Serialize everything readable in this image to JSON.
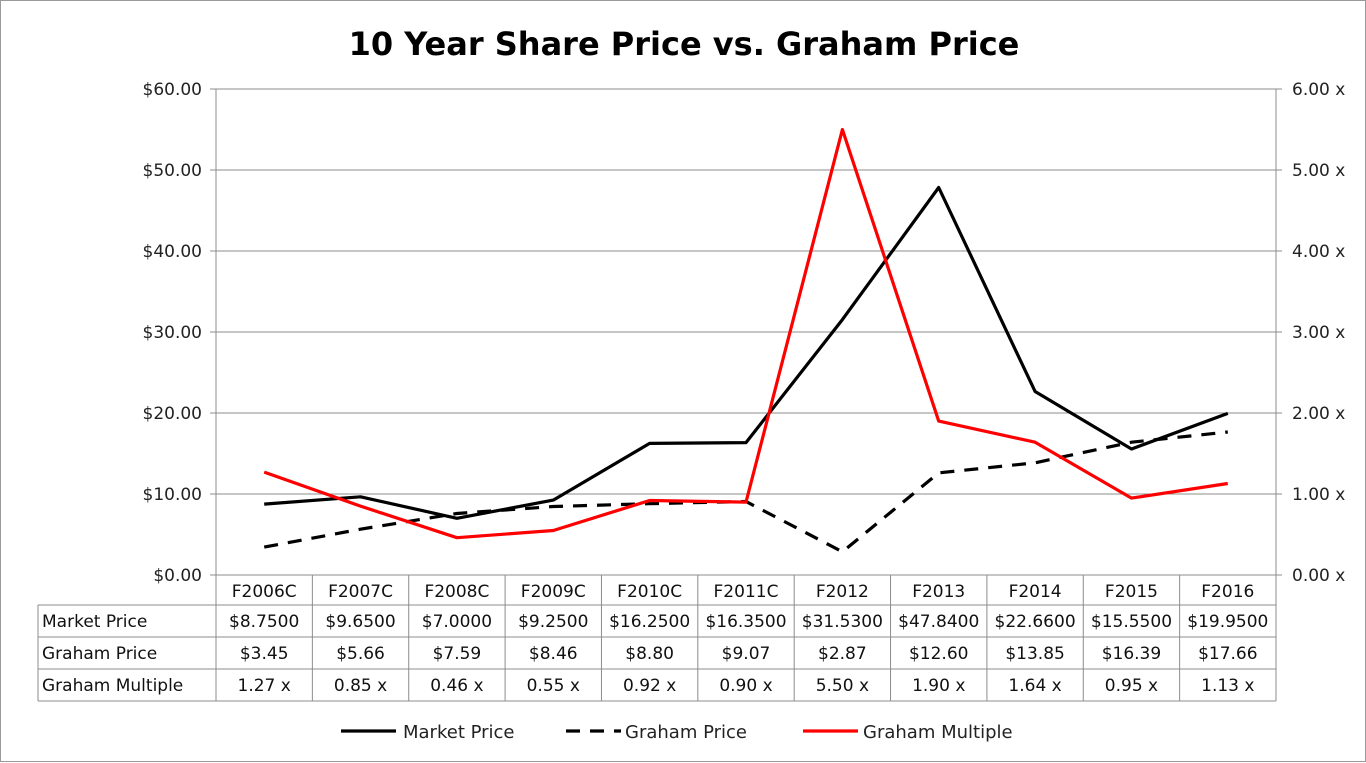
{
  "chart_data": {
    "type": "line",
    "title": "10 Year Share Price vs. Graham Price",
    "categories": [
      "F2006C",
      "F2007C",
      "F2008C",
      "F2009C",
      "F2010C",
      "F2011C",
      "F2012",
      "F2013",
      "F2014",
      "F2015",
      "F2016"
    ],
    "left_axis": {
      "ylim": [
        0,
        60
      ],
      "ticks": [
        0,
        10,
        20,
        30,
        40,
        50,
        60
      ],
      "tick_labels": [
        "$0.00",
        "$10.00",
        "$20.00",
        "$30.00",
        "$40.00",
        "$50.00",
        "$60.00"
      ]
    },
    "right_axis": {
      "ylim": [
        0,
        6
      ],
      "ticks": [
        0,
        1,
        2,
        3,
        4,
        5,
        6
      ],
      "tick_labels": [
        "0.00 x",
        "1.00 x",
        "2.00 x",
        "3.00 x",
        "4.00 x",
        "5.00 x",
        "6.00 x"
      ]
    },
    "grid": true,
    "legend_position": "bottom",
    "series": [
      {
        "name": "Market Price",
        "axis": "left",
        "color": "#000000",
        "dash": "solid",
        "values": [
          8.75,
          9.65,
          7.0,
          9.25,
          16.25,
          16.35,
          31.53,
          47.84,
          22.66,
          15.55,
          19.95
        ],
        "table_values": [
          "$8.7500",
          "$9.6500",
          "$7.0000",
          "$9.2500",
          "$16.2500",
          "$16.3500",
          "$31.5300",
          "$47.8400",
          "$22.6600",
          "$15.5500",
          "$19.9500"
        ]
      },
      {
        "name": "Graham Price",
        "axis": "left",
        "color": "#000000",
        "dash": "dashed",
        "values": [
          3.45,
          5.66,
          7.59,
          8.46,
          8.8,
          9.07,
          2.87,
          12.6,
          13.85,
          16.39,
          17.66
        ],
        "table_values": [
          "$3.45",
          "$5.66",
          "$7.59",
          "$8.46",
          "$8.80",
          "$9.07",
          "$2.87",
          "$12.60",
          "$13.85",
          "$16.39",
          "$17.66"
        ]
      },
      {
        "name": "Graham Multiple",
        "axis": "right",
        "color": "#ff0000",
        "dash": "solid",
        "values": [
          1.27,
          0.85,
          0.46,
          0.55,
          0.92,
          0.9,
          5.5,
          1.9,
          1.64,
          0.95,
          1.13
        ],
        "table_values": [
          "1.27 x",
          "0.85 x",
          "0.46 x",
          "0.55 x",
          "0.92 x",
          "0.90 x",
          "5.50 x",
          "1.90 x",
          "1.64 x",
          "0.95 x",
          "1.13 x"
        ]
      }
    ]
  }
}
